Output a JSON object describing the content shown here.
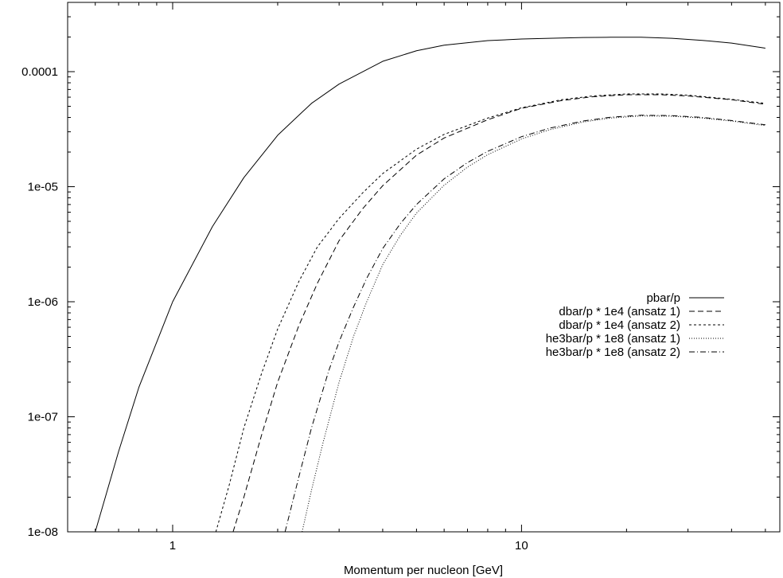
{
  "chart_data": {
    "type": "line",
    "title": "",
    "xlabel": "Momentum per nucleon [GeV]",
    "ylabel": "",
    "xscale": "log",
    "yscale": "log",
    "xlim": [
      0.5,
      55
    ],
    "ylim": [
      1e-08,
      0.0004
    ],
    "grid": false,
    "legend_position": "center-right",
    "x_ticks": [
      {
        "value": 1,
        "label": "1"
      },
      {
        "value": 10,
        "label": "10"
      }
    ],
    "x_minor_ticks": [
      0.6,
      0.7,
      0.8,
      0.9,
      2,
      3,
      4,
      5,
      6,
      7,
      8,
      9,
      20,
      30,
      40,
      50
    ],
    "y_ticks": [
      {
        "value": 1e-08,
        "label": "1e-08"
      },
      {
        "value": 1e-07,
        "label": "1e-07"
      },
      {
        "value": 1e-06,
        "label": "1e-06"
      },
      {
        "value": 1e-05,
        "label": "1e-05"
      },
      {
        "value": 0.0001,
        "label": "0.0001"
      }
    ],
    "series": [
      {
        "name": "pbar/p",
        "color": "#000000",
        "dash": "solid",
        "x": [
          0.6,
          0.7,
          0.8,
          1.0,
          1.3,
          1.6,
          2.0,
          2.5,
          3.0,
          4.0,
          5.0,
          6.0,
          8.0,
          10,
          12,
          15,
          18,
          22,
          27,
          33,
          40,
          50
        ],
        "y": [
          1e-08,
          5e-08,
          1.8e-07,
          1e-06,
          4.5e-06,
          1.2e-05,
          2.8e-05,
          5.3e-05,
          7.8e-05,
          0.000123,
          0.000152,
          0.00017,
          0.000186,
          0.000192,
          0.000195,
          0.000198,
          0.000199,
          0.000199,
          0.000195,
          0.000187,
          0.000177,
          0.00016
        ]
      },
      {
        "name": "dbar/p * 1e4 (ansatz 1)",
        "color": "#000000",
        "dash": "long-dash",
        "x": [
          1.49,
          1.6,
          1.8,
          2.0,
          2.3,
          2.6,
          3.0,
          3.5,
          4.0,
          5.0,
          6.0,
          8.0,
          10,
          13,
          16,
          20,
          25,
          30,
          40,
          50
        ],
        "y": [
          1e-08,
          2e-08,
          7e-08,
          2e-07,
          6.2e-07,
          1.45e-06,
          3.4e-06,
          6.4e-06,
          1.02e-05,
          1.88e-05,
          2.65e-05,
          3.82e-05,
          4.8e-05,
          5.6e-05,
          6.05e-05,
          6.3e-05,
          6.3e-05,
          6.15e-05,
          5.7e-05,
          5.2e-05
        ]
      },
      {
        "name": "dbar/p * 1e4 (ansatz 2)",
        "color": "#000000",
        "dash": "short-dash",
        "x": [
          1.33,
          1.45,
          1.6,
          1.8,
          2.0,
          2.3,
          2.6,
          3.0,
          3.5,
          4.0,
          5.0,
          6.0,
          8.0,
          10,
          13,
          16,
          20,
          25,
          30,
          40,
          50
        ],
        "y": [
          1e-08,
          2.5e-08,
          8e-08,
          2.4e-07,
          5.8e-07,
          1.5e-06,
          3e-06,
          5.3e-06,
          8.8e-06,
          1.3e-05,
          2.12e-05,
          2.85e-05,
          3.95e-05,
          4.85e-05,
          5.7e-05,
          6.15e-05,
          6.4e-05,
          6.4e-05,
          6.25e-05,
          5.75e-05,
          5.3e-05
        ]
      },
      {
        "name": "he3bar/p * 1e8 (ansatz 1)",
        "color": "#000000",
        "dash": "dotted",
        "x": [
          2.35,
          2.5,
          2.7,
          3.0,
          3.3,
          3.6,
          4.0,
          4.5,
          5.0,
          6.0,
          7.0,
          8.0,
          10,
          12,
          15,
          18,
          22,
          27,
          33,
          40,
          50
        ],
        "y": [
          1e-08,
          2.3e-08,
          6e-08,
          2e-07,
          5e-07,
          1e-06,
          2.1e-06,
          3.8e-06,
          5.9e-06,
          1.03e-05,
          1.48e-05,
          1.9e-05,
          2.6e-05,
          3.12e-05,
          3.65e-05,
          3.95e-05,
          4.12e-05,
          4.1e-05,
          3.95e-05,
          3.72e-05,
          3.4e-05
        ]
      },
      {
        "name": "he3bar/p * 1e8 (ansatz 2)",
        "color": "#000000",
        "dash": "dash-dot",
        "x": [
          2.1,
          2.3,
          2.5,
          2.8,
          3.0,
          3.3,
          3.6,
          4.0,
          4.5,
          5.0,
          6.0,
          7.0,
          8.0,
          10,
          12,
          15,
          18,
          22,
          27,
          33,
          40,
          50
        ],
        "y": [
          1e-08,
          3e-08,
          8e-08,
          2.5e-07,
          4.5e-07,
          9e-07,
          1.6e-06,
          2.9e-06,
          4.8e-06,
          7e-06,
          1.17e-05,
          1.62e-05,
          2.03e-05,
          2.72e-05,
          3.22e-05,
          3.72e-05,
          4.02e-05,
          4.18e-05,
          4.15e-05,
          4e-05,
          3.76e-05,
          3.45e-05
        ]
      }
    ]
  }
}
